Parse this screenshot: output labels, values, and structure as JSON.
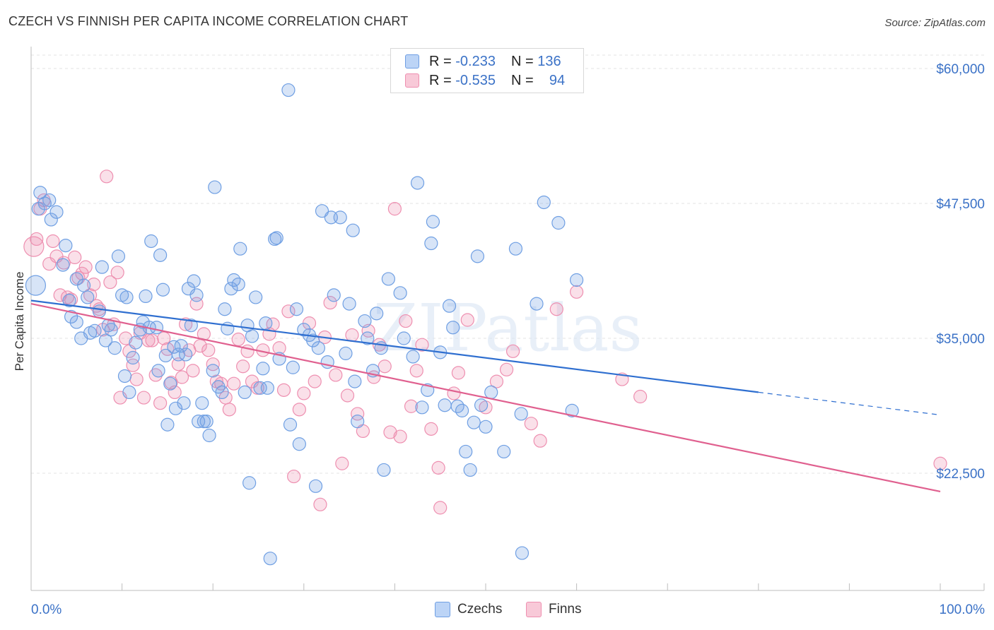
{
  "chart_data": {
    "type": "scatter",
    "title": "CZECH VS FINNISH PER CAPITA INCOME CORRELATION CHART",
    "source": "Source: ZipAtlas.com",
    "watermark": "ZIPatlas",
    "xlabel": "",
    "ylabel": "Per Capita Income",
    "xlim": [
      0,
      100
    ],
    "ylim": [
      10000,
      62000
    ],
    "x_tick_labels": [
      "0.0%",
      "100.0%"
    ],
    "y_ticks": [
      22500,
      35000,
      47500,
      60000
    ],
    "y_tick_labels": [
      "$22,500",
      "$35,000",
      "$47,500",
      "$60,000"
    ],
    "legend": [
      {
        "name": "Czechs",
        "r_label": "R =",
        "r_value": "-0.233",
        "n_label": "N =",
        "n_value": "136"
      },
      {
        "name": "Finns",
        "r_label": "R =",
        "r_value": "-0.535",
        "n_label": "N =",
        "n_value": "94"
      }
    ],
    "series": [
      {
        "name": "Czechs",
        "color": "#6f9fe3",
        "line_color": "#2f6fd0",
        "trend": {
          "x0": 0,
          "y0": 38500,
          "x1": 80,
          "y1": 30000,
          "dash_to_x": 100,
          "dash_to_y": 27900
        },
        "points": [
          [
            0.5,
            39900
          ],
          [
            0.8,
            47000
          ],
          [
            1.0,
            48500
          ],
          [
            1.5,
            47500
          ],
          [
            2.0,
            47800
          ],
          [
            2.2,
            46000
          ],
          [
            2.8,
            46700
          ],
          [
            3.5,
            41800
          ],
          [
            3.8,
            43600
          ],
          [
            4.2,
            38500
          ],
          [
            4.4,
            37000
          ],
          [
            5.0,
            40500
          ],
          [
            5.0,
            36500
          ],
          [
            5.5,
            35000
          ],
          [
            5.8,
            39900
          ],
          [
            6.2,
            38800
          ],
          [
            6.5,
            35500
          ],
          [
            7.0,
            35700
          ],
          [
            7.5,
            37500
          ],
          [
            7.8,
            41600
          ],
          [
            8.2,
            34800
          ],
          [
            8.5,
            36200
          ],
          [
            8.8,
            35800
          ],
          [
            9.2,
            34100
          ],
          [
            9.6,
            42600
          ],
          [
            10.0,
            39000
          ],
          [
            10.3,
            31500
          ],
          [
            10.5,
            38800
          ],
          [
            10.8,
            30000
          ],
          [
            11.2,
            33200
          ],
          [
            11.5,
            34600
          ],
          [
            12.0,
            35800
          ],
          [
            12.3,
            36500
          ],
          [
            12.6,
            38900
          ],
          [
            13.0,
            36000
          ],
          [
            13.2,
            44000
          ],
          [
            13.8,
            36000
          ],
          [
            14.0,
            32000
          ],
          [
            14.2,
            42700
          ],
          [
            14.5,
            39500
          ],
          [
            14.8,
            33400
          ],
          [
            15.0,
            27000
          ],
          [
            15.3,
            30800
          ],
          [
            15.7,
            34200
          ],
          [
            15.9,
            28500
          ],
          [
            16.2,
            33500
          ],
          [
            16.5,
            34300
          ],
          [
            16.8,
            29000
          ],
          [
            17.0,
            33500
          ],
          [
            17.3,
            39600
          ],
          [
            17.6,
            36200
          ],
          [
            17.9,
            40300
          ],
          [
            18.2,
            39000
          ],
          [
            18.4,
            27300
          ],
          [
            18.8,
            29000
          ],
          [
            19.0,
            27300
          ],
          [
            19.3,
            27300
          ],
          [
            19.6,
            26000
          ],
          [
            20.0,
            32000
          ],
          [
            20.2,
            49000
          ],
          [
            20.6,
            30500
          ],
          [
            21.0,
            30000
          ],
          [
            21.3,
            37700
          ],
          [
            21.6,
            35900
          ],
          [
            22.0,
            39600
          ],
          [
            22.3,
            40400
          ],
          [
            22.8,
            40000
          ],
          [
            23.0,
            43300
          ],
          [
            23.5,
            30000
          ],
          [
            23.8,
            36200
          ],
          [
            24.0,
            21600
          ],
          [
            24.3,
            35200
          ],
          [
            24.7,
            38800
          ],
          [
            25.2,
            30400
          ],
          [
            25.5,
            32200
          ],
          [
            25.8,
            36400
          ],
          [
            26.0,
            30400
          ],
          [
            26.3,
            14600
          ],
          [
            26.8,
            44200
          ],
          [
            27.0,
            44300
          ],
          [
            27.3,
            33100
          ],
          [
            28.5,
            27000
          ],
          [
            28.8,
            32300
          ],
          [
            29.2,
            37700
          ],
          [
            29.5,
            25200
          ],
          [
            30.0,
            35800
          ],
          [
            30.6,
            35300
          ],
          [
            31.0,
            34800
          ],
          [
            31.3,
            21300
          ],
          [
            31.6,
            34100
          ],
          [
            32.0,
            46800
          ],
          [
            32.6,
            32800
          ],
          [
            33.0,
            46200
          ],
          [
            33.3,
            39000
          ],
          [
            34.0,
            46200
          ],
          [
            34.6,
            33600
          ],
          [
            35.0,
            38200
          ],
          [
            35.4,
            45000
          ],
          [
            35.6,
            31000
          ],
          [
            35.9,
            27300
          ],
          [
            36.7,
            36600
          ],
          [
            37.0,
            35000
          ],
          [
            37.6,
            32000
          ],
          [
            38.0,
            37300
          ],
          [
            38.5,
            34100
          ],
          [
            38.8,
            22800
          ],
          [
            39.3,
            40500
          ],
          [
            40.6,
            39200
          ],
          [
            41.0,
            35000
          ],
          [
            42.0,
            33300
          ],
          [
            42.5,
            49400
          ],
          [
            43.0,
            28600
          ],
          [
            43.6,
            30200
          ],
          [
            44.0,
            43800
          ],
          [
            44.2,
            45800
          ],
          [
            45.0,
            33700
          ],
          [
            45.5,
            28800
          ],
          [
            46.0,
            38000
          ],
          [
            46.4,
            36000
          ],
          [
            46.9,
            28700
          ],
          [
            47.4,
            28300
          ],
          [
            47.8,
            24500
          ],
          [
            48.3,
            22800
          ],
          [
            48.7,
            27200
          ],
          [
            49.1,
            42600
          ],
          [
            49.5,
            28800
          ],
          [
            50.0,
            26800
          ],
          [
            50.6,
            30000
          ],
          [
            52.0,
            24500
          ],
          [
            53.3,
            43300
          ],
          [
            53.9,
            28000
          ],
          [
            54.0,
            15100
          ],
          [
            55.6,
            38200
          ],
          [
            56.4,
            47600
          ],
          [
            58.0,
            45700
          ],
          [
            59.5,
            28300
          ],
          [
            60.0,
            40400
          ],
          [
            28.3,
            58000
          ]
        ]
      },
      {
        "name": "Finns",
        "color": "#ee8fb0",
        "line_color": "#e0608f",
        "trend": {
          "x0": 0,
          "y0": 38200,
          "x1": 100,
          "y1": 20800
        },
        "points": [
          [
            0.3,
            43500
          ],
          [
            0.6,
            44200
          ],
          [
            1.0,
            47000
          ],
          [
            1.4,
            47800
          ],
          [
            2.0,
            41900
          ],
          [
            2.4,
            44000
          ],
          [
            2.8,
            42600
          ],
          [
            3.2,
            39000
          ],
          [
            3.6,
            42000
          ],
          [
            4.0,
            38800
          ],
          [
            4.4,
            38600
          ],
          [
            4.8,
            42500
          ],
          [
            5.2,
            40600
          ],
          [
            5.6,
            41000
          ],
          [
            6.0,
            41600
          ],
          [
            6.5,
            39000
          ],
          [
            6.9,
            40000
          ],
          [
            7.2,
            38000
          ],
          [
            7.5,
            37700
          ],
          [
            7.9,
            35800
          ],
          [
            8.3,
            50000
          ],
          [
            8.7,
            40200
          ],
          [
            9.1,
            36300
          ],
          [
            9.5,
            41100
          ],
          [
            9.8,
            29500
          ],
          [
            10.4,
            35000
          ],
          [
            10.8,
            33800
          ],
          [
            11.2,
            32500
          ],
          [
            11.6,
            31200
          ],
          [
            12.0,
            35500
          ],
          [
            12.4,
            29500
          ],
          [
            12.9,
            34800
          ],
          [
            13.3,
            34800
          ],
          [
            13.7,
            31600
          ],
          [
            14.2,
            29000
          ],
          [
            14.6,
            35000
          ],
          [
            15.0,
            34000
          ],
          [
            15.4,
            30900
          ],
          [
            15.8,
            30000
          ],
          [
            16.2,
            32600
          ],
          [
            16.6,
            31400
          ],
          [
            17.0,
            36300
          ],
          [
            17.4,
            33900
          ],
          [
            17.8,
            32000
          ],
          [
            18.2,
            38200
          ],
          [
            18.6,
            34300
          ],
          [
            19.0,
            35400
          ],
          [
            19.5,
            33900
          ],
          [
            20.0,
            32600
          ],
          [
            20.4,
            31000
          ],
          [
            20.9,
            30800
          ],
          [
            21.4,
            29500
          ],
          [
            21.8,
            28400
          ],
          [
            22.3,
            30800
          ],
          [
            22.8,
            34900
          ],
          [
            23.3,
            32400
          ],
          [
            23.8,
            33800
          ],
          [
            24.3,
            31000
          ],
          [
            24.9,
            30400
          ],
          [
            25.5,
            33900
          ],
          [
            26.2,
            35400
          ],
          [
            26.6,
            36300
          ],
          [
            27.3,
            34100
          ],
          [
            27.8,
            30200
          ],
          [
            28.3,
            37500
          ],
          [
            28.9,
            22200
          ],
          [
            29.5,
            28400
          ],
          [
            30.0,
            29900
          ],
          [
            30.6,
            36400
          ],
          [
            31.2,
            31000
          ],
          [
            31.8,
            19600
          ],
          [
            32.3,
            35100
          ],
          [
            32.9,
            38300
          ],
          [
            33.5,
            31600
          ],
          [
            34.2,
            23400
          ],
          [
            34.8,
            29700
          ],
          [
            35.3,
            35300
          ],
          [
            35.9,
            28000
          ],
          [
            36.5,
            26400
          ],
          [
            37.1,
            35700
          ],
          [
            37.7,
            31400
          ],
          [
            38.3,
            34400
          ],
          [
            38.9,
            32400
          ],
          [
            39.5,
            26300
          ],
          [
            40.0,
            47000
          ],
          [
            40.6,
            25900
          ],
          [
            41.2,
            36600
          ],
          [
            41.8,
            28700
          ],
          [
            42.4,
            32000
          ],
          [
            43.0,
            34400
          ],
          [
            44.0,
            26600
          ],
          [
            44.8,
            23000
          ],
          [
            45.0,
            19300
          ],
          [
            46.5,
            29900
          ],
          [
            47.0,
            31800
          ],
          [
            48.0,
            36700
          ],
          [
            50.0,
            28600
          ],
          [
            51.2,
            31000
          ],
          [
            52.3,
            32100
          ],
          [
            53.0,
            33800
          ],
          [
            55.0,
            27100
          ],
          [
            56.0,
            25500
          ],
          [
            57.8,
            37700
          ],
          [
            60.0,
            39300
          ],
          [
            65.0,
            31200
          ],
          [
            67.0,
            29600
          ],
          [
            100.0,
            23400
          ]
        ]
      }
    ]
  }
}
